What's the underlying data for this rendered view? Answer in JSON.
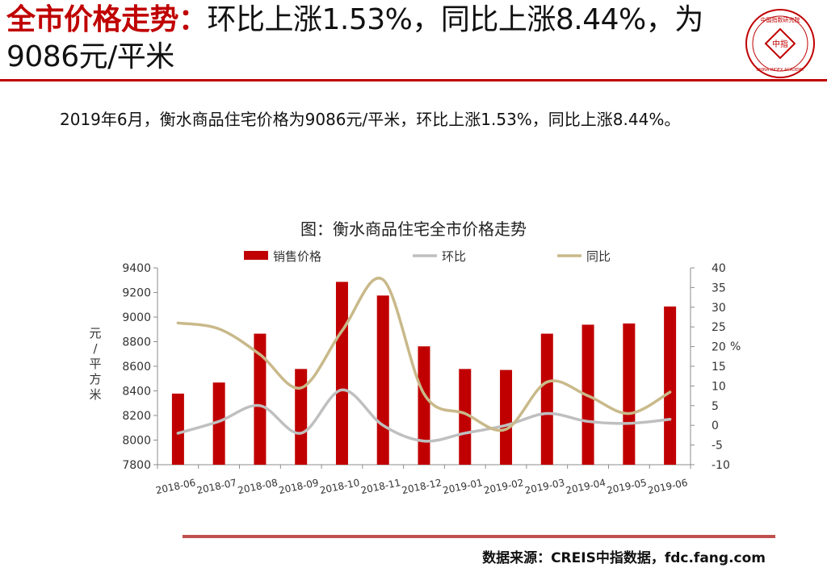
{
  "slide": {
    "headline_accent": "全市价格走势：",
    "headline_rest": "环比上涨1.53%，同比上涨8.44%，为9086元/平米",
    "summary": "2019年6月，衡水商品住宅价格为9086元/平米，环比上涨1.53%，同比上涨8.44%。",
    "source": "数据来源：CREIS中指数据，fdc.fang.com",
    "seal": {
      "center_text": "中指",
      "top_text": "中国指数研究院",
      "bottom_text": "CHINA INDEX ACADEMY"
    },
    "colors": {
      "accent": "#c00000",
      "bar": "#c00000",
      "mom_line": "#bfbfbf",
      "yoy_line": "#c9b98a"
    }
  },
  "chart_data": {
    "type": "bar",
    "title": "图：衡水商品住宅全市价格走势",
    "categories": [
      "2018-06",
      "2018-07",
      "2018-08",
      "2018-09",
      "2018-10",
      "2018-11",
      "2018-12",
      "2019-01",
      "2019-02",
      "2019-03",
      "2019-04",
      "2019-05",
      "2019-06"
    ],
    "series": [
      {
        "name": "销售价格",
        "type": "bar",
        "axis": "left",
        "values": [
          8378,
          8468,
          8865,
          8578,
          9286,
          9175,
          8762,
          8578,
          8570,
          8865,
          8938,
          8948,
          9086
        ]
      },
      {
        "name": "环比",
        "type": "line",
        "axis": "right",
        "values": [
          -2,
          1,
          5,
          -2,
          9,
          0,
          -4,
          -2,
          0,
          3,
          1,
          0.5,
          1.53
        ]
      },
      {
        "name": "同比",
        "type": "line",
        "axis": "right",
        "values": [
          26,
          24.5,
          18,
          9.5,
          24,
          37,
          8,
          3,
          -1,
          11,
          7.5,
          3,
          8.44
        ]
      }
    ],
    "ylabel": "元/平方米",
    "ylim": [
      7800,
      9400
    ],
    "yticks": [
      7800,
      8000,
      8200,
      8400,
      8600,
      8800,
      9000,
      9200,
      9400
    ],
    "y2label": "%",
    "y2lim": [
      -10,
      40
    ],
    "y2ticks": [
      -10,
      -5,
      0,
      5,
      10,
      15,
      20,
      25,
      30,
      35,
      40
    ],
    "legend": "top",
    "grid": false
  }
}
